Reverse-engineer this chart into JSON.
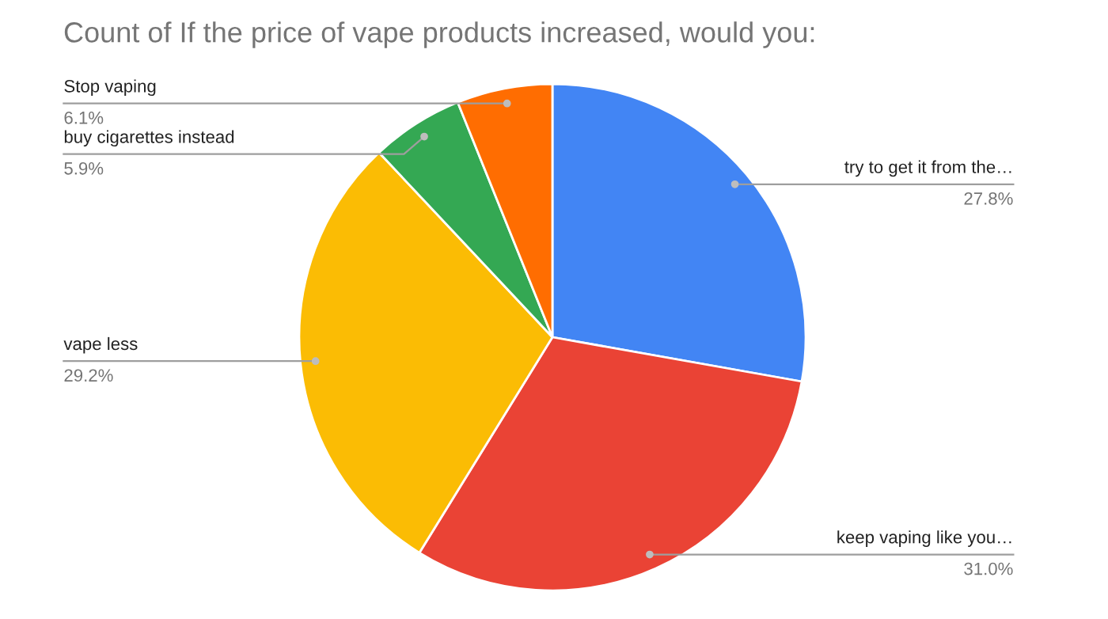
{
  "chart_data": {
    "type": "pie",
    "title": "Count of If the price of vape products increased, would you:",
    "categories": [
      "try to get it from the…",
      "keep vaping like you…",
      "vape less",
      "buy cigarettes instead",
      "Stop vaping"
    ],
    "values": [
      27.8,
      31.0,
      29.2,
      5.9,
      6.1
    ],
    "value_labels": [
      "27.8%",
      "31.0%",
      "29.2%",
      "5.9%",
      "6.1%"
    ],
    "colors": [
      "#4285f4",
      "#ea4335",
      "#fbbc04",
      "#34a853",
      "#ff6d01"
    ],
    "legend": false
  }
}
